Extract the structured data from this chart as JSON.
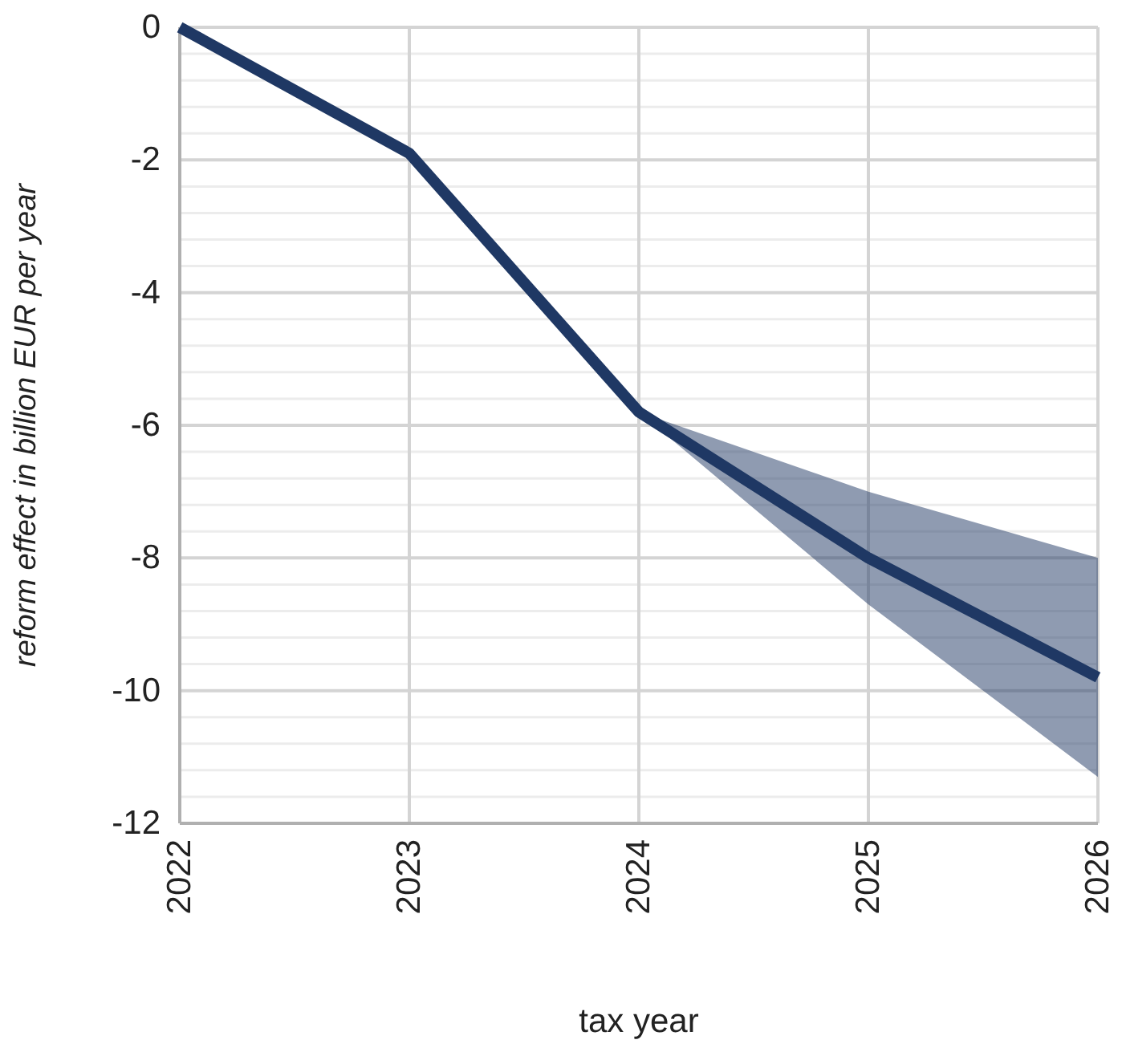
{
  "chart_data": {
    "type": "line",
    "xlabel": "tax year",
    "ylabel": "reform effect in billion EUR per year",
    "x": [
      2022,
      2023,
      2024,
      2025,
      2026
    ],
    "xlim": [
      2022,
      2026
    ],
    "xticks": [
      2022,
      2023,
      2024,
      2025,
      2026
    ],
    "ylim": [
      -12,
      0
    ],
    "yticks": [
      -12,
      -10,
      -8,
      -6,
      -4,
      -2,
      0
    ],
    "series": [
      {
        "color": "#1f3864",
        "values": [
          0,
          -1.9,
          -5.8,
          -8.0,
          -9.8
        ],
        "lower": [
          null,
          null,
          -5.8,
          -8.7,
          -11.3
        ],
        "upper": [
          null,
          null,
          -5.8,
          -7.0,
          -8.0
        ]
      }
    ],
    "grid": true,
    "marker": "none",
    "line_style": "solid"
  }
}
